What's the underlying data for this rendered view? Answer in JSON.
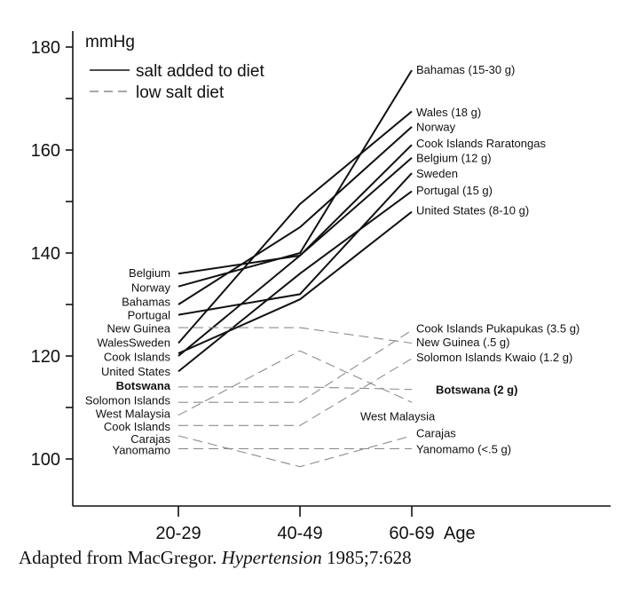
{
  "chart_data": {
    "type": "line",
    "title": "",
    "unit_label": "mmHg",
    "xlabel": "Age",
    "ylabel": "",
    "categories": [
      "20-29",
      "40-49",
      "60-69"
    ],
    "ylim": [
      92,
      182
    ],
    "y_ticks": [
      100,
      120,
      140,
      160,
      180
    ],
    "y_minor_ticks": [
      110,
      130,
      150,
      170
    ],
    "grid": false,
    "legend": [
      {
        "label": "salt added to diet",
        "style": "solid"
      },
      {
        "label": "low salt diet",
        "style": "dashed"
      }
    ],
    "series": [
      {
        "group": "salt",
        "values": [
          133.5,
          140.0,
          175.5
        ],
        "start_label": "Norway",
        "end_label": "Bahamas (15-30 g)"
      },
      {
        "group": "salt",
        "values": [
          122.5,
          149.5,
          167.5
        ],
        "start_label": "Sweden",
        "end_label": "Wales  (18 g)"
      },
      {
        "group": "salt",
        "values": [
          130.0,
          145.0,
          164.5
        ],
        "start_label": "Bahamas",
        "end_label": "Norway"
      },
      {
        "group": "salt",
        "values": [
          136.0,
          139.5,
          161.0
        ],
        "start_label": "Belgium",
        "end_label": "Cook Islands Raratongas"
      },
      {
        "group": "salt",
        "values": [
          120.0,
          139.5,
          158.5
        ],
        "start_label": "Cook Islands",
        "end_label": "Belgium (12 g)"
      },
      {
        "group": "salt",
        "values": [
          128.0,
          132.0,
          155.5
        ],
        "start_label": "Portugal",
        "end_label": "Sweden"
      },
      {
        "group": "salt",
        "values": [
          117.0,
          136.0,
          152.0
        ],
        "start_label": "United States",
        "end_label": "Portugal (15 g)"
      },
      {
        "group": "salt",
        "values": [
          120.5,
          131.0,
          148.0
        ],
        "start_label": "Wales",
        "end_label": "United States (8-10 g)"
      },
      {
        "group": "low",
        "values": [
          111.0,
          111.0,
          125.0
        ],
        "start_label": "Solomon Islands",
        "end_label": "Cook Islands Pukapukas (3.5 g)"
      },
      {
        "group": "low",
        "values": [
          125.5,
          125.5,
          122.5
        ],
        "start_label": "New Guinea",
        "end_label": "New Guinea (.5 g)"
      },
      {
        "group": "low",
        "values": [
          106.5,
          106.5,
          119.5
        ],
        "start_label": "Cook Islands",
        "end_label": "Solomon Islands Kwaio (1.2 g)"
      },
      {
        "group": "low",
        "values": [
          114.0,
          114.0,
          113.5
        ],
        "start_label": "Botswana",
        "end_label": "Botswana (2 g)",
        "bold": true
      },
      {
        "group": "low",
        "values": [
          108.5,
          121.0,
          111.0
        ],
        "start_label": "West Malaysia",
        "end_label": "West Malaysia"
      },
      {
        "group": "low",
        "values": [
          104.5,
          98.5,
          104.5
        ],
        "start_label": "Carajas",
        "end_label": "Carajas"
      },
      {
        "group": "low",
        "values": [
          102.0,
          102.0,
          102.0
        ],
        "start_label": "Yanomamo",
        "end_label": "Yanomamo (<.5 g)"
      }
    ],
    "start_labels": [
      {
        "text": "Belgium",
        "y": 136.2
      },
      {
        "text": "Norway",
        "y": 133.4
      },
      {
        "text": "Bahamas",
        "y": 130.6
      },
      {
        "text": "Portugal",
        "y": 128.0
      },
      {
        "text": "New Guinea",
        "y": 125.4
      },
      {
        "text": "Wales",
        "y": 122.7
      },
      {
        "text": "Sweden",
        "y": 122.7
      },
      {
        "text": "Cook Islands",
        "y": 119.9
      },
      {
        "text": "United States",
        "y": 117.1
      },
      {
        "text": "Botswana",
        "y": 114.3,
        "bold": true
      },
      {
        "text": "Solomon Islands",
        "y": 111.5
      },
      {
        "text": "West Malaysia",
        "y": 108.9
      },
      {
        "text": "Cook Islands",
        "y": 106.4
      },
      {
        "text": "Carajas",
        "y": 104.0
      },
      {
        "text": "Yanomamo",
        "y": 101.8
      }
    ],
    "end_labels": [
      {
        "text": "Bahamas (15-30 g)",
        "y": 175.7
      },
      {
        "text": "Wales  (18 g)",
        "y": 167.4
      },
      {
        "text": "Norway",
        "y": 164.6
      },
      {
        "text": "Cook Islands Raratongas",
        "y": 161.4
      },
      {
        "text": "Belgium (12 g)",
        "y": 158.5
      },
      {
        "text": "Sweden",
        "y": 155.5
      },
      {
        "text": "Portugal (15 g)",
        "y": 152.2
      },
      {
        "text": "United States (8-10 g)",
        "y": 148.4
      },
      {
        "text": "Cook Islands Pukapukas (3.5 g)",
        "y": 125.4
      },
      {
        "text": "New Guinea (.5 g)",
        "y": 122.8
      },
      {
        "text": "Solomon Islands Kwaio (1.2 g)",
        "y": 119.8
      },
      {
        "text": "Botswana (2 g)",
        "y": 113.5,
        "bold": true
      },
      {
        "text": "Carajas",
        "y": 105.1
      },
      {
        "text": "Yanomamo (<.5 g)",
        "y": 102.0
      }
    ],
    "mid_labels": [
      {
        "text": "West Malaysia",
        "y": 108.4
      }
    ]
  },
  "caption": {
    "prefix": "Adapted from MacGregor. ",
    "journal": "Hypertension",
    "suffix": " 1985;7:628"
  }
}
